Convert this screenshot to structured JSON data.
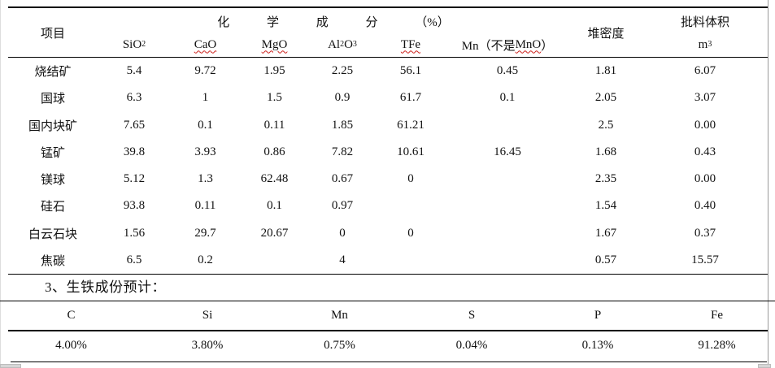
{
  "table1": {
    "item_header": "项目",
    "group_header": "化 学 成 分 （%）",
    "sub": {
      "sio2_base": "SiO",
      "sio2_sub": "2",
      "cao": "CaO",
      "mgo": "MgO",
      "al2o3_p1": "Al",
      "al2o3_s1": "2",
      "al2o3_p2": "O",
      "al2o3_s2": "3",
      "tfe": "TFe",
      "mn_prefix": "Mn（不是 ",
      "mn_word": "MnO",
      "mn_suffix": "）"
    },
    "density_header": "堆密度",
    "volume_header_line1": "批料体积",
    "volume_unit_base": "m",
    "volume_unit_sup": "3",
    "rows": [
      {
        "name": "烧结矿",
        "sio2": "5.4",
        "cao": "9.72",
        "mgo": "1.95",
        "al2o3": "2.25",
        "tfe": "56.1",
        "mn": "0.45",
        "density": "1.81",
        "volume": "6.07"
      },
      {
        "name": "国球",
        "sio2": "6.3",
        "cao": "1",
        "mgo": "1.5",
        "al2o3": "0.9",
        "tfe": "61.7",
        "mn": "0.1",
        "density": "2.05",
        "volume": "3.07"
      },
      {
        "name": "国内块矿",
        "sio2": "7.65",
        "cao": "0.1",
        "mgo": "0.11",
        "al2o3": "1.85",
        "tfe": "61.21",
        "mn": "",
        "density": "2.5",
        "volume": "0.00"
      },
      {
        "name": "锰矿",
        "sio2": "39.8",
        "cao": "3.93",
        "mgo": "0.86",
        "al2o3": "7.82",
        "tfe": "10.61",
        "mn": "16.45",
        "density": "1.68",
        "volume": "0.43"
      },
      {
        "name": "镁球",
        "sio2": "5.12",
        "cao": "1.3",
        "mgo": "62.48",
        "al2o3": "0.67",
        "tfe": "0",
        "mn": "",
        "density": "2.35",
        "volume": "0.00"
      },
      {
        "name": "硅石",
        "sio2": "93.8",
        "cao": "0.11",
        "mgo": "0.1",
        "al2o3": "0.97",
        "tfe": "",
        "mn": "",
        "density": "1.54",
        "volume": "0.40"
      },
      {
        "name": "白云石块",
        "sio2": "1.56",
        "cao": "29.7",
        "mgo": "20.67",
        "al2o3": "0",
        "tfe": "0",
        "mn": "",
        "density": "1.67",
        "volume": "0.37"
      },
      {
        "name": "焦碳",
        "sio2": "6.5",
        "cao": "0.2",
        "mgo": "",
        "al2o3": "4",
        "tfe": "",
        "mn": "",
        "density": "0.57",
        "volume": "15.57"
      }
    ]
  },
  "section": {
    "heading": "3、生铁成份预计："
  },
  "table2": {
    "headers": [
      "C",
      "Si",
      "Mn",
      "S",
      "P",
      "Fe"
    ],
    "values": [
      "4.00%",
      "3.80%",
      "0.75%",
      "0.04%",
      "0.13%",
      "91.28%"
    ]
  },
  "colors": {
    "rule": "#000000",
    "misspell_wavy": "#cc1f1a",
    "selection_handle": "#d6d6d6",
    "page_edge_right": "#9a9a9a"
  }
}
